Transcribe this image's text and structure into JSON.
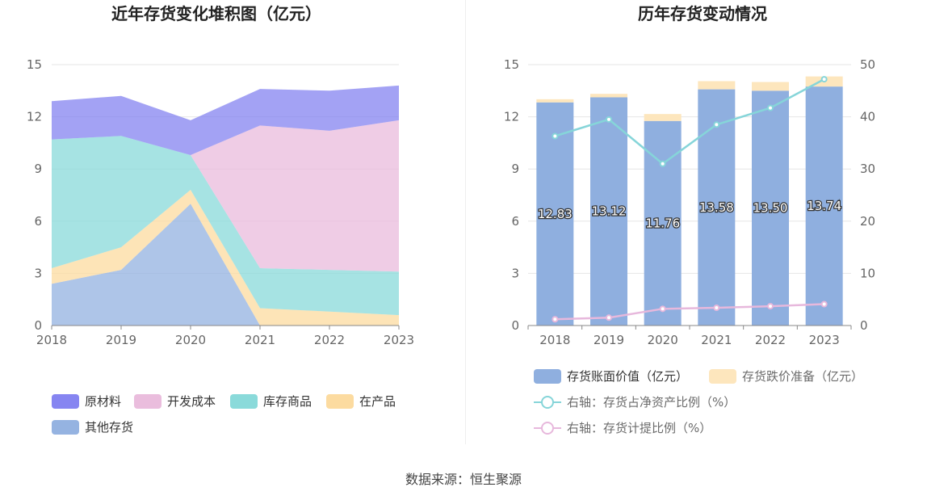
{
  "chart_data": [
    {
      "type": "area",
      "stacked": true,
      "title": "近年存货变化堆积图（亿元）",
      "categories": [
        "2018",
        "2019",
        "2020",
        "2021",
        "2022",
        "2023"
      ],
      "ylim": [
        0,
        15
      ],
      "yticks": [
        "0",
        "3",
        "6",
        "9",
        "12",
        "15"
      ],
      "grid": true,
      "legend_position": "bottom",
      "series": [
        {
          "name": "其他存货",
          "color": "#8fafdf",
          "values": [
            2.4,
            3.2,
            7.0,
            0.0,
            0.0,
            0.0
          ]
        },
        {
          "name": "在产品",
          "color": "#fcd99b",
          "values": [
            0.9,
            1.3,
            0.8,
            1.0,
            0.8,
            0.6
          ]
        },
        {
          "name": "库存商品",
          "color": "#84d8d8",
          "values": [
            7.4,
            6.4,
            2.0,
            2.3,
            2.4,
            2.5
          ]
        },
        {
          "name": "开发成本",
          "color": "#e9b9db",
          "values": [
            0.0,
            0.0,
            0.0,
            8.2,
            8.0,
            8.7
          ]
        },
        {
          "name": "原材料",
          "color": "#7f7ef0",
          "values": [
            2.2,
            2.3,
            2.0,
            2.1,
            2.3,
            2.0
          ]
        }
      ],
      "legend_order": [
        "原材料",
        "开发成本",
        "库存商品",
        "在产品",
        "其他存货"
      ]
    },
    {
      "type": "bar",
      "title": "历年存货变动情况",
      "categories": [
        "2018",
        "2019",
        "2020",
        "2021",
        "2022",
        "2023"
      ],
      "ylim": [
        0,
        15
      ],
      "yticks": [
        "0",
        "3",
        "6",
        "9",
        "12",
        "15"
      ],
      "y2lim": [
        0,
        50
      ],
      "y2ticks": [
        "0",
        "10",
        "20",
        "30",
        "40",
        "50"
      ],
      "grid": true,
      "legend_position": "bottom",
      "bar_series": [
        {
          "name": "存货账面价值（亿元）",
          "color": "#8fafdf",
          "values": [
            12.83,
            13.12,
            11.76,
            13.58,
            13.5,
            13.74
          ],
          "labels": [
            "12.83",
            "13.12",
            "11.76",
            "13.58",
            "13.50",
            "13.74"
          ]
        },
        {
          "name": "存货跌价准备（亿元）",
          "color": "#fde6bd",
          "values": [
            0.18,
            0.2,
            0.4,
            0.47,
            0.5,
            0.58
          ]
        }
      ],
      "line_series": [
        {
          "name": "右轴：存货占净资产比例（%）",
          "color": "#86d5d9",
          "axis": "right",
          "values": [
            36.3,
            39.5,
            31.0,
            38.5,
            41.7,
            47.2
          ]
        },
        {
          "name": "右轴：存货计提比例（%）",
          "color": "#e7b8dc",
          "axis": "right",
          "values": [
            1.2,
            1.5,
            3.2,
            3.4,
            3.7,
            4.1
          ]
        }
      ]
    }
  ],
  "footer": {
    "source": "数据来源：恒生聚源"
  }
}
